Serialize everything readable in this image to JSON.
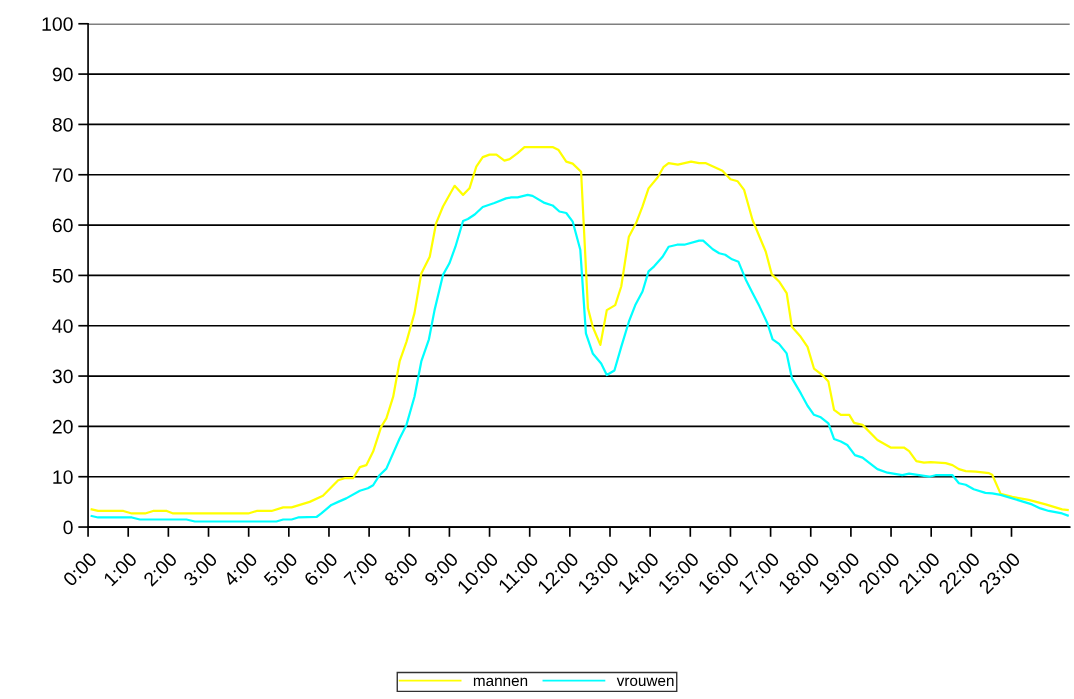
{
  "chart_data": {
    "type": "line",
    "xlim": [
      0,
      24.45
    ],
    "ylim": [
      0,
      100
    ],
    "xticks": [
      {
        "value": 0,
        "label": "0:00"
      },
      {
        "value": 1,
        "label": "1:00"
      },
      {
        "value": 2,
        "label": "2:00"
      },
      {
        "value": 3,
        "label": "3:00"
      },
      {
        "value": 4,
        "label": "4:00"
      },
      {
        "value": 5,
        "label": "5:00"
      },
      {
        "value": 6,
        "label": "6:00"
      },
      {
        "value": 7,
        "label": "7:00"
      },
      {
        "value": 8,
        "label": "8:00"
      },
      {
        "value": 9,
        "label": "9:00"
      },
      {
        "value": 10,
        "label": "10:00"
      },
      {
        "value": 11,
        "label": "11:00"
      },
      {
        "value": 12,
        "label": "12:00"
      },
      {
        "value": 13,
        "label": "13:00"
      },
      {
        "value": 14,
        "label": "14:00"
      },
      {
        "value": 15,
        "label": "15:00"
      },
      {
        "value": 16,
        "label": "16:00"
      },
      {
        "value": 17,
        "label": "17:00"
      },
      {
        "value": 18,
        "label": "18:00"
      },
      {
        "value": 19,
        "label": "19:00"
      },
      {
        "value": 20,
        "label": "20:00"
      },
      {
        "value": 21,
        "label": "21:00"
      },
      {
        "value": 22,
        "label": "22:00"
      },
      {
        "value": 23,
        "label": "23:00"
      }
    ],
    "yticks": [
      0,
      10,
      20,
      30,
      40,
      50,
      60,
      70,
      80,
      90,
      100
    ],
    "grid": "y",
    "legend": "bottom",
    "marker": "none",
    "line_style": "solid",
    "series": [
      {
        "name": "mannen",
        "color": "#ffff00",
        "x": [
          0.09,
          0.25,
          0.88,
          1.09,
          1.42,
          1.62,
          1.96,
          2.12,
          3.99,
          4.2,
          4.57,
          4.86,
          5.07,
          5.52,
          5.85,
          6.23,
          6.39,
          6.6,
          6.77,
          6.93,
          7.1,
          7.3,
          7.43,
          7.6,
          7.76,
          7.93,
          8.13,
          8.3,
          8.51,
          8.67,
          8.84,
          9.13,
          9.34,
          9.5,
          9.67,
          9.83,
          10.0,
          10.17,
          10.37,
          10.5,
          10.7,
          10.87,
          11.57,
          11.72,
          11.91,
          12.07,
          12.28,
          12.45,
          12.57,
          12.76,
          12.92,
          13.13,
          13.28,
          13.47,
          13.65,
          13.81,
          13.96,
          14.19,
          14.33,
          14.46,
          14.69,
          15.02,
          15.22,
          15.39,
          15.8,
          16.0,
          16.18,
          16.34,
          16.55,
          16.88,
          17.03,
          17.21,
          17.4,
          17.53,
          17.75,
          17.92,
          18.08,
          18.29,
          18.44,
          18.58,
          18.75,
          18.96,
          19.08,
          19.29,
          19.66,
          19.99,
          20.32,
          20.45,
          20.63,
          20.82,
          20.99,
          21.36,
          21.53,
          21.69,
          21.86,
          22.11,
          22.44,
          22.52,
          22.73,
          23.02,
          23.43,
          23.85,
          24.26,
          24.4
        ],
        "values": [
          3.5,
          3.2,
          3.2,
          2.7,
          2.7,
          3.2,
          3.2,
          2.7,
          2.7,
          3.2,
          3.2,
          3.9,
          3.9,
          5.0,
          6.2,
          9.3,
          9.7,
          9.7,
          11.9,
          12.3,
          15.0,
          19.9,
          21.6,
          25.9,
          32.9,
          36.8,
          42.5,
          50.4,
          53.7,
          60.4,
          63.7,
          67.8,
          66.0,
          67.3,
          71.6,
          73.5,
          74.0,
          74.0,
          72.8,
          73.1,
          74.3,
          75.5,
          75.5,
          74.9,
          72.6,
          72.2,
          70.6,
          43.5,
          39.8,
          36.2,
          43.1,
          44.1,
          47.8,
          57.7,
          60.4,
          63.7,
          67.3,
          69.5,
          71.5,
          72.3,
          72.0,
          72.6,
          72.3,
          72.3,
          70.8,
          69.1,
          68.7,
          67.0,
          61.0,
          54.7,
          50.2,
          48.8,
          46.5,
          39.8,
          37.8,
          35.8,
          31.5,
          30.2,
          28.9,
          23.3,
          22.3,
          22.3,
          20.7,
          20.3,
          17.3,
          15.8,
          15.8,
          15.1,
          13.1,
          12.8,
          12.9,
          12.7,
          12.3,
          11.5,
          11.1,
          11.0,
          10.7,
          10.4,
          6.6,
          6.0,
          5.4,
          4.5,
          3.5,
          3.4
        ]
      },
      {
        "name": "vrouwen",
        "color": "#00ffff",
        "x": [
          0.09,
          0.25,
          1.09,
          1.29,
          2.45,
          2.66,
          4.69,
          4.86,
          5.07,
          5.23,
          5.69,
          5.81,
          6.06,
          6.23,
          6.43,
          6.77,
          6.97,
          7.1,
          7.26,
          7.43,
          7.76,
          7.93,
          8.13,
          8.3,
          8.49,
          8.63,
          8.84,
          9.0,
          9.15,
          9.34,
          9.46,
          9.63,
          9.83,
          10.12,
          10.41,
          10.54,
          10.7,
          10.95,
          11.07,
          11.37,
          11.57,
          11.74,
          11.91,
          12.07,
          12.26,
          12.4,
          12.57,
          12.78,
          12.92,
          13.11,
          13.28,
          13.47,
          13.63,
          13.81,
          13.96,
          14.1,
          14.31,
          14.46,
          14.67,
          14.85,
          15.22,
          15.32,
          15.56,
          15.72,
          15.87,
          16.04,
          16.2,
          16.38,
          16.55,
          16.72,
          16.92,
          17.05,
          17.21,
          17.4,
          17.53,
          17.75,
          17.92,
          18.08,
          18.25,
          18.44,
          18.58,
          18.75,
          18.91,
          19.1,
          19.29,
          19.45,
          19.66,
          19.91,
          20.28,
          20.45,
          20.95,
          21.11,
          21.53,
          21.69,
          21.86,
          22.06,
          22.35,
          22.52,
          22.73,
          23.51,
          23.72,
          23.93,
          24.26,
          24.4
        ],
        "values": [
          2.2,
          1.9,
          1.9,
          1.5,
          1.5,
          1.1,
          1.1,
          1.5,
          1.5,
          1.9,
          2.0,
          2.7,
          4.4,
          5.0,
          5.7,
          7.2,
          7.7,
          8.3,
          10.3,
          11.6,
          17.6,
          20.3,
          25.9,
          32.9,
          37.3,
          43.1,
          50.1,
          52.4,
          55.7,
          60.8,
          61.2,
          62.1,
          63.6,
          64.4,
          65.3,
          65.5,
          65.5,
          66.0,
          65.8,
          64.4,
          63.9,
          62.7,
          62.4,
          60.7,
          55.1,
          38.5,
          34.5,
          32.5,
          30.2,
          31.1,
          35.8,
          40.8,
          44.1,
          46.8,
          50.8,
          51.8,
          53.7,
          55.7,
          56.1,
          56.1,
          56.9,
          56.9,
          55.2,
          54.4,
          54.1,
          53.2,
          52.7,
          49.2,
          46.5,
          43.9,
          40.5,
          37.3,
          36.4,
          34.5,
          29.6,
          26.6,
          24.1,
          22.3,
          21.8,
          20.6,
          17.5,
          17.0,
          16.3,
          14.3,
          13.8,
          12.8,
          11.5,
          10.8,
          10.3,
          10.6,
          10.0,
          10.3,
          10.3,
          8.7,
          8.4,
          7.5,
          6.8,
          6.7,
          6.4,
          4.5,
          3.7,
          3.2,
          2.7,
          2.3
        ]
      }
    ]
  }
}
